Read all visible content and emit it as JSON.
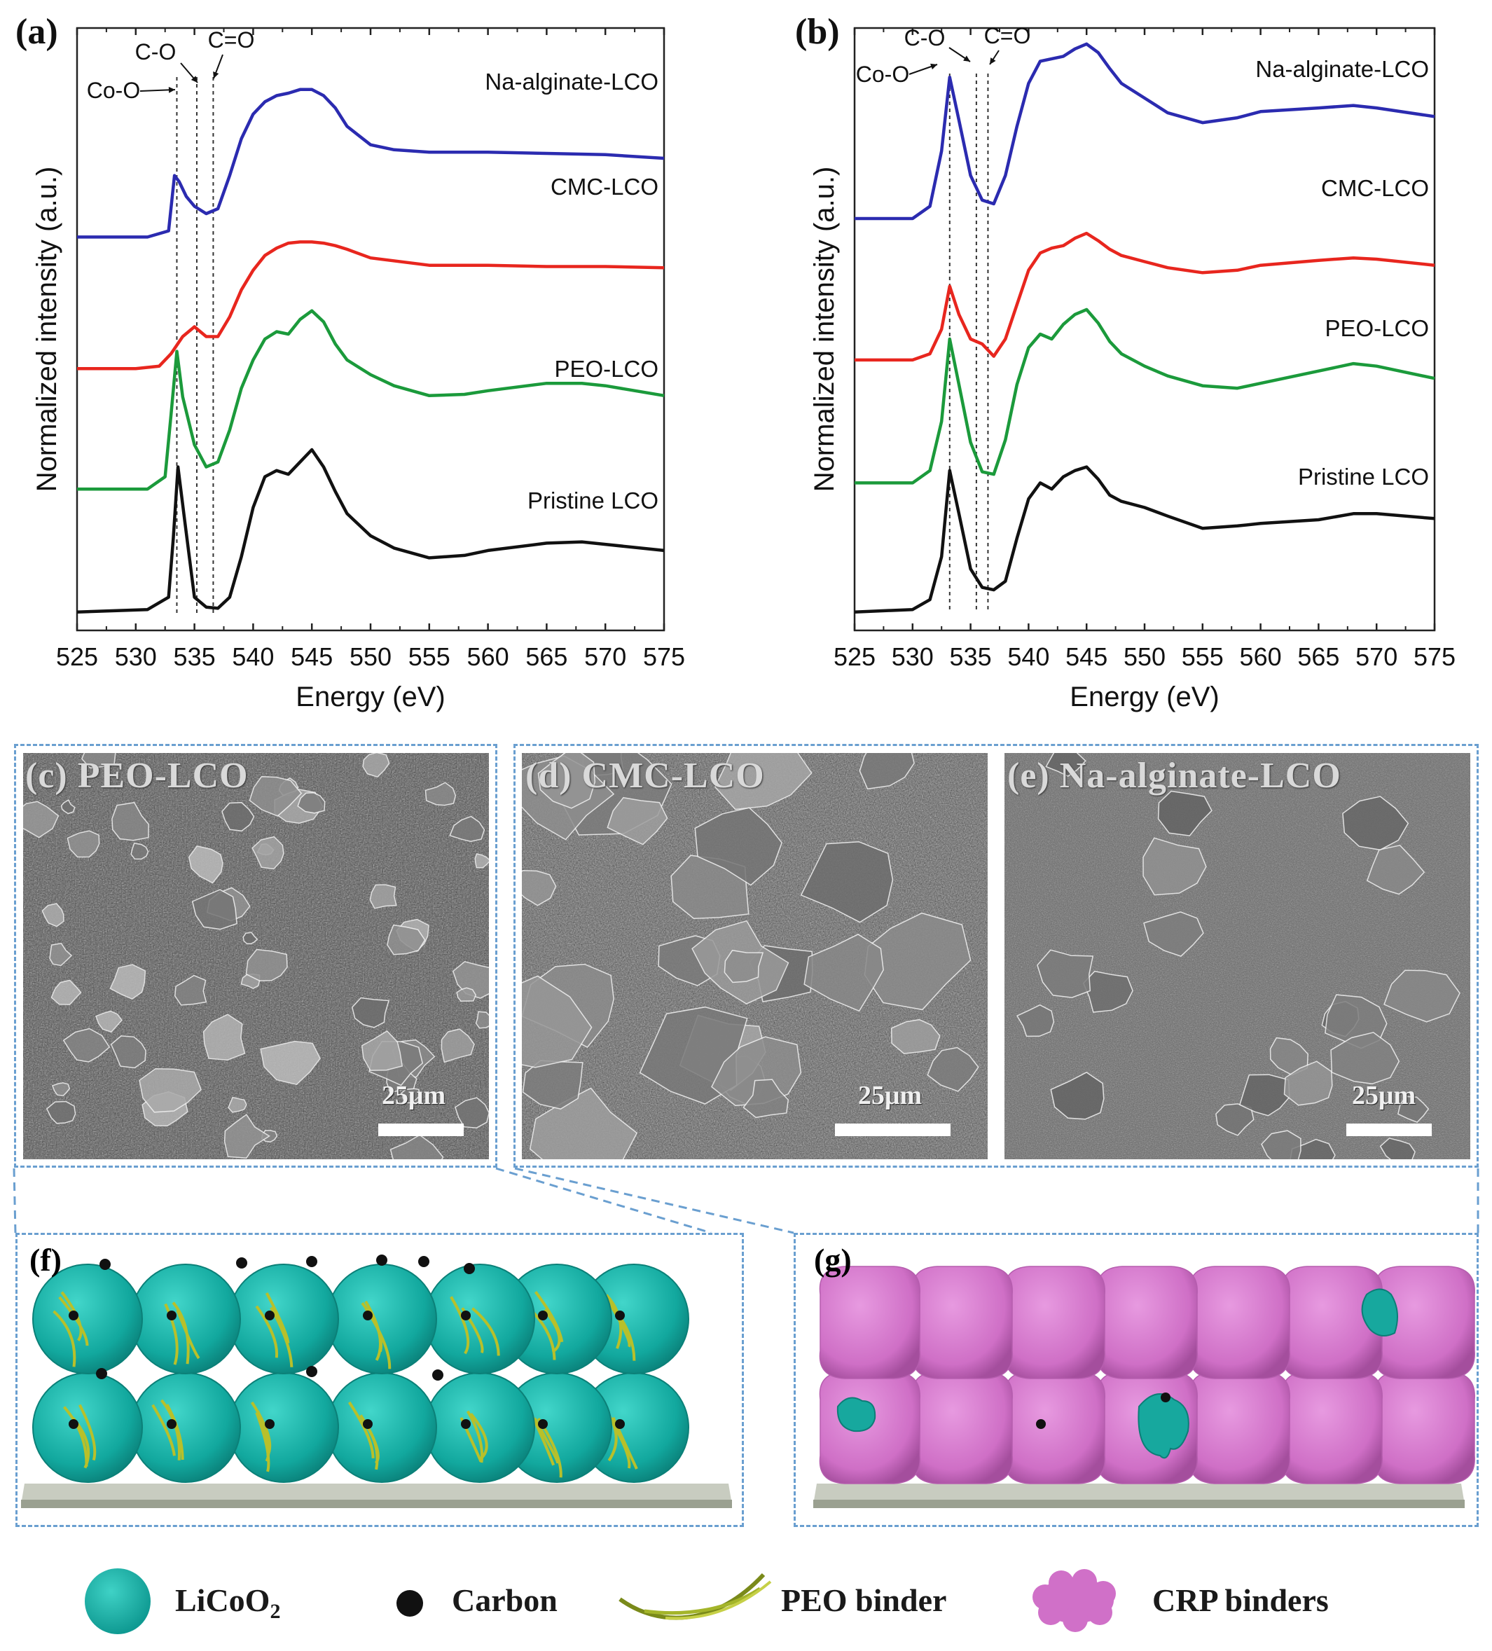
{
  "panels": {
    "a": {
      "label": "(a)"
    },
    "b": {
      "label": "(b)"
    },
    "c": {
      "label": "(c) PEO-LCO",
      "scale": "25μm"
    },
    "d": {
      "label": "(d) CMC-LCO",
      "scale": "25μm"
    },
    "e": {
      "label": "(e) Na-alginate-LCO",
      "scale": "25μm"
    },
    "f": {
      "label": "(f)"
    },
    "g": {
      "label": "(g)"
    }
  },
  "chart_data": [
    {
      "type": "line",
      "panel": "a",
      "xlabel": "Energy (eV)",
      "ylabel": "Normalized intensity (a.u.)",
      "xlim": [
        525,
        575
      ],
      "xticks": [
        525,
        530,
        535,
        540,
        545,
        550,
        555,
        560,
        565,
        570,
        575
      ],
      "y_ticks_shown": false,
      "markers": [
        {
          "label": "Co-O",
          "x": 533.5
        },
        {
          "label": "C-O",
          "x": 535.2
        },
        {
          "label": "C=O",
          "x": 536.6
        }
      ],
      "series": [
        {
          "name": "Na-alginate-LCO",
          "color": "#2b2bb0",
          "x": [
            525,
            531,
            532.8,
            533.3,
            533.7,
            534.3,
            535,
            536,
            537,
            538,
            539,
            540,
            541,
            542,
            543,
            544,
            545,
            546,
            547,
            548,
            550,
            552,
            555,
            560,
            565,
            570,
            575
          ],
          "y": [
            3.05,
            3.05,
            3.1,
            3.55,
            3.5,
            3.38,
            3.3,
            3.24,
            3.28,
            3.55,
            3.85,
            4.05,
            4.15,
            4.2,
            4.22,
            4.25,
            4.25,
            4.2,
            4.1,
            3.95,
            3.8,
            3.76,
            3.74,
            3.74,
            3.73,
            3.72,
            3.69
          ]
        },
        {
          "name": "CMC-LCO",
          "color": "#e8261e",
          "x": [
            525,
            530,
            532,
            533,
            534,
            535,
            536,
            537,
            538,
            539,
            540,
            541,
            542,
            543,
            544,
            545,
            546,
            547,
            548,
            550,
            555,
            560,
            565,
            570,
            575
          ],
          "y": [
            1.98,
            1.98,
            2.0,
            2.1,
            2.24,
            2.32,
            2.24,
            2.24,
            2.4,
            2.62,
            2.78,
            2.9,
            2.96,
            3.0,
            3.01,
            3.01,
            3.0,
            2.98,
            2.95,
            2.88,
            2.82,
            2.82,
            2.81,
            2.81,
            2.8
          ]
        },
        {
          "name": "PEO-LCO",
          "color": "#1b9a3b",
          "x": [
            525,
            531,
            532.5,
            533.0,
            533.5,
            534,
            535,
            536,
            537,
            538,
            539,
            540,
            541,
            542,
            543,
            544,
            545,
            546,
            547,
            548,
            550,
            552,
            555,
            558,
            560,
            565,
            568,
            570,
            575
          ],
          "y": [
            1.0,
            1.0,
            1.1,
            1.6,
            2.12,
            1.75,
            1.36,
            1.18,
            1.22,
            1.48,
            1.82,
            2.05,
            2.22,
            2.28,
            2.26,
            2.38,
            2.45,
            2.36,
            2.18,
            2.05,
            1.93,
            1.84,
            1.76,
            1.77,
            1.8,
            1.86,
            1.86,
            1.84,
            1.76
          ]
        },
        {
          "name": "Pristine LCO",
          "color": "#111111",
          "x": [
            525,
            531,
            532.8,
            533.2,
            533.6,
            534.2,
            535,
            536,
            537,
            538,
            539,
            540,
            541,
            542,
            543,
            544,
            545,
            546,
            547,
            548,
            550,
            552,
            555,
            558,
            560,
            565,
            568,
            570,
            575
          ],
          "y": [
            0.0,
            0.02,
            0.12,
            0.6,
            1.18,
            0.72,
            0.12,
            0.04,
            0.03,
            0.12,
            0.45,
            0.85,
            1.1,
            1.15,
            1.12,
            1.22,
            1.32,
            1.18,
            0.98,
            0.8,
            0.62,
            0.52,
            0.44,
            0.46,
            0.5,
            0.56,
            0.57,
            0.55,
            0.5
          ]
        }
      ],
      "series_labels": [
        "Na-alginate-LCO",
        "CMC-LCO",
        "PEO-LCO",
        "Pristine LCO"
      ]
    },
    {
      "type": "line",
      "panel": "b",
      "xlabel": "Energy (eV)",
      "ylabel": "Normalized intensity (a.u.)",
      "xlim": [
        525,
        575
      ],
      "xticks": [
        525,
        530,
        535,
        540,
        545,
        550,
        555,
        560,
        565,
        570,
        575
      ],
      "y_ticks_shown": false,
      "markers": [
        {
          "label": "Co-O",
          "x": 533.2
        },
        {
          "label": "C-O",
          "x": 535.5
        },
        {
          "label": "C=O",
          "x": 536.5
        }
      ],
      "series": [
        {
          "name": "Na-alginate-LCO",
          "color": "#2b2bb0",
          "x": [
            525,
            530,
            531.5,
            532.5,
            533.2,
            534,
            535,
            536,
            537,
            538,
            539,
            540,
            541,
            542,
            543,
            544,
            545,
            546,
            547,
            548,
            550,
            552,
            555,
            558,
            560,
            565,
            568,
            570,
            575
          ],
          "y": [
            3.2,
            3.2,
            3.3,
            3.75,
            4.35,
            4.0,
            3.55,
            3.35,
            3.32,
            3.55,
            3.95,
            4.3,
            4.48,
            4.5,
            4.52,
            4.58,
            4.62,
            4.55,
            4.42,
            4.3,
            4.18,
            4.06,
            3.98,
            4.02,
            4.07,
            4.1,
            4.12,
            4.1,
            4.03
          ]
        },
        {
          "name": "CMC-LCO",
          "color": "#e8261e",
          "x": [
            525,
            530,
            531.5,
            532.5,
            533.2,
            534,
            535,
            536,
            537,
            538,
            539,
            540,
            541,
            542,
            543,
            544,
            545,
            546,
            547,
            548,
            550,
            552,
            555,
            558,
            560,
            565,
            568,
            570,
            575
          ],
          "y": [
            2.05,
            2.05,
            2.1,
            2.3,
            2.65,
            2.42,
            2.22,
            2.18,
            2.08,
            2.22,
            2.5,
            2.78,
            2.92,
            2.96,
            2.98,
            3.04,
            3.08,
            3.02,
            2.95,
            2.9,
            2.85,
            2.8,
            2.76,
            2.78,
            2.82,
            2.86,
            2.88,
            2.87,
            2.82
          ]
        },
        {
          "name": "PEO-LCO",
          "color": "#1b9a3b",
          "x": [
            525,
            530,
            531.5,
            532.5,
            533.2,
            534,
            535,
            536,
            537,
            538,
            539,
            540,
            541,
            542,
            543,
            544,
            545,
            546,
            547,
            548,
            550,
            552,
            555,
            558,
            560,
            565,
            568,
            570,
            575
          ],
          "y": [
            1.05,
            1.05,
            1.15,
            1.55,
            2.22,
            1.85,
            1.38,
            1.14,
            1.12,
            1.4,
            1.85,
            2.15,
            2.26,
            2.22,
            2.34,
            2.42,
            2.46,
            2.35,
            2.2,
            2.1,
            2.0,
            1.92,
            1.84,
            1.82,
            1.86,
            1.96,
            2.02,
            2.0,
            1.9
          ]
        },
        {
          "name": "Pristine LCO",
          "color": "#111111",
          "x": [
            525,
            530,
            531.5,
            532.5,
            533.2,
            534,
            535,
            536,
            537,
            538,
            539,
            540,
            541,
            542,
            543,
            544,
            545,
            546,
            547,
            548,
            550,
            552,
            555,
            558,
            560,
            565,
            568,
            570,
            575
          ],
          "y": [
            0.0,
            0.02,
            0.1,
            0.45,
            1.15,
            0.8,
            0.35,
            0.2,
            0.18,
            0.25,
            0.6,
            0.92,
            1.05,
            1.0,
            1.1,
            1.15,
            1.18,
            1.08,
            0.95,
            0.9,
            0.85,
            0.78,
            0.68,
            0.7,
            0.72,
            0.75,
            0.8,
            0.8,
            0.76
          ]
        }
      ],
      "series_labels": [
        "Na-alginate-LCO",
        "CMC-LCO",
        "PEO-LCO",
        "Pristine LCO"
      ]
    }
  ],
  "legend": {
    "licoo2": "LiCoO",
    "licoo2_sub": "2",
    "carbon": "Carbon",
    "peo_binder": "PEO binder",
    "crp_binders": "CRP binders"
  }
}
